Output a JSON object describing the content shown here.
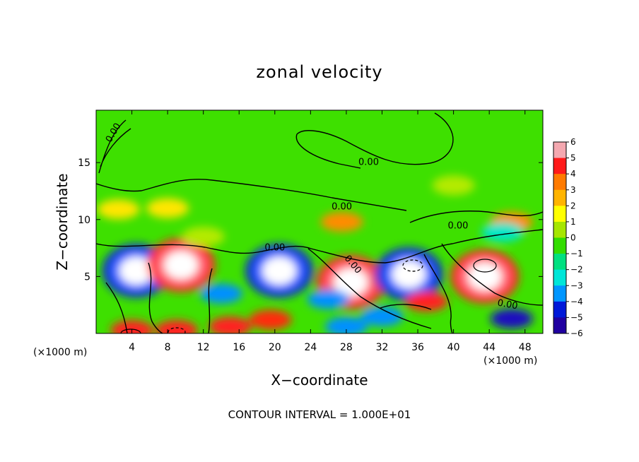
{
  "chart_data": {
    "type": "heatmap",
    "title": "zonal velocity",
    "xlabel": "X−coordinate",
    "ylabel": "Z−coordinate",
    "x_unit_label": "(×1000 m)",
    "xlim": [
      0,
      50
    ],
    "ylim": [
      0,
      19.6
    ],
    "x_ticks": [
      4,
      8,
      12,
      16,
      20,
      24,
      28,
      32,
      36,
      40,
      44,
      48
    ],
    "y_ticks": [
      5,
      10,
      15
    ],
    "colorbar": {
      "levels": [
        6,
        5,
        4,
        3,
        2,
        1,
        0,
        -1,
        -2,
        -3,
        -4,
        -5,
        -6
      ],
      "colors": [
        "#f4a8b0",
        "#ff1a1a",
        "#ff7a00",
        "#ffb400",
        "#ffff00",
        "#a6e600",
        "#33dd00",
        "#00e080",
        "#00e6d8",
        "#0096ff",
        "#0018d8",
        "#2000a0"
      ]
    },
    "contour_label": "0.00",
    "contour_interval": "CONTOUR INTERVAL = 1.000E+01",
    "features": [
      {
        "x": 4.5,
        "z": 5.5,
        "value": -7
      },
      {
        "x": 9.5,
        "z": 6.0,
        "value": 7
      },
      {
        "x": 20.5,
        "z": 5.5,
        "value": -7
      },
      {
        "x": 28.5,
        "z": 4.5,
        "value": 7
      },
      {
        "x": 35.0,
        "z": 5.2,
        "value": -7
      },
      {
        "x": 43.5,
        "z": 5.0,
        "value": 7
      },
      {
        "x": 19.5,
        "z": 1.2,
        "value": 4
      },
      {
        "x": 14.0,
        "z": 3.5,
        "value": -3
      },
      {
        "x": 26.0,
        "z": 3.0,
        "value": -3
      },
      {
        "x": 32.0,
        "z": 1.5,
        "value": -3
      },
      {
        "x": 37.0,
        "z": 2.8,
        "value": 6
      },
      {
        "x": 46.5,
        "z": 1.3,
        "value": -5
      },
      {
        "x": 28.0,
        "z": 0.6,
        "value": -3
      },
      {
        "x": 4.0,
        "z": 0.3,
        "value": 5
      },
      {
        "x": 9.0,
        "z": 0.3,
        "value": 5
      },
      {
        "x": 15.0,
        "z": 0.6,
        "value": 5
      },
      {
        "x": 2.5,
        "z": 10.9,
        "value": 2
      },
      {
        "x": 8.0,
        "z": 11.0,
        "value": 2
      },
      {
        "x": 27.5,
        "z": 9.8,
        "value": 3
      },
      {
        "x": 46.5,
        "z": 9.8,
        "value": 3
      },
      {
        "x": 45.5,
        "z": 8.9,
        "value": -2
      },
      {
        "x": 12.0,
        "z": 8.5,
        "value": 1
      },
      {
        "x": 40.0,
        "z": 13.0,
        "value": 1
      }
    ]
  }
}
